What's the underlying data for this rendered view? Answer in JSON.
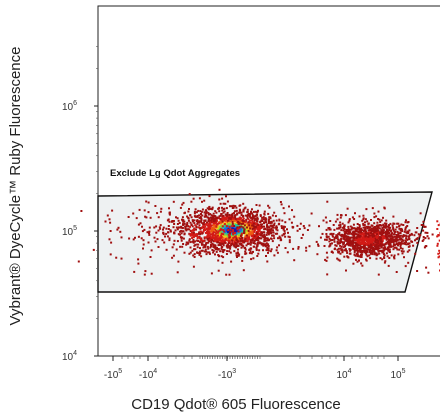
{
  "chart_data": {
    "type": "scatter",
    "plot_kind": "flow cytometry density plot",
    "ylabel": "Vybrant® DyeCycle™ Ruby Fluorescence",
    "xlabel": "CD19 Qdot® 605 Fluorescence",
    "x_scale": "biexponential",
    "y_scale": "log",
    "ylim": [
      10000,
      5000000
    ],
    "x_ticks": [
      {
        "base": "-10",
        "exp": "5",
        "value": -100000
      },
      {
        "base": "-10",
        "exp": "4",
        "value": -10000
      },
      {
        "base": "-10",
        "exp": "3",
        "value": -1000
      },
      {
        "base": "10",
        "exp": "4",
        "value": 10000
      },
      {
        "base": "10",
        "exp": "5",
        "value": 100000
      }
    ],
    "y_ticks": [
      {
        "base": "10",
        "exp": "4",
        "value": 10000
      },
      {
        "base": "10",
        "exp": "5",
        "value": 100000
      },
      {
        "base": "10",
        "exp": "6",
        "value": 1000000
      }
    ],
    "gate": {
      "label": "Exclude Lg Qdot Aggregates",
      "shape": "polygon",
      "fill": "#eef1f2",
      "stroke": "#111111"
    },
    "populations": [
      {
        "x": -500,
        "y": 100000,
        "density": "high"
      },
      {
        "x": 30000,
        "y": 95000,
        "density": "medium"
      }
    ],
    "density_colors": [
      "#a01010",
      "#d21a16",
      "#ee5a12",
      "#f6c81a",
      "#8ed23a",
      "#1ec6a8",
      "#1e6ad8",
      "#1a1aa8"
    ],
    "grid": false
  }
}
